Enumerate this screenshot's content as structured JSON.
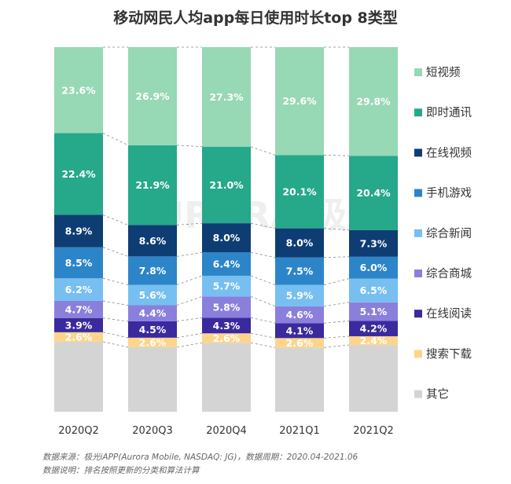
{
  "chart_data": {
    "type": "bar",
    "stacked": true,
    "normalized": true,
    "title": "移动网民人均app每日使用时长top 8类型",
    "categories": [
      "2020Q2",
      "2020Q3",
      "2020Q4",
      "2021Q1",
      "2021Q2"
    ],
    "value_format": "percent",
    "series": [
      {
        "name": "其它",
        "color": "#d4d4d4",
        "values": [
          null,
          null,
          null,
          null,
          null
        ]
      },
      {
        "name": "搜索下载",
        "color": "#fdd58a",
        "values": [
          2.6,
          2.6,
          2.6,
          2.6,
          2.4
        ]
      },
      {
        "name": "在线阅读",
        "color": "#3a2a9e",
        "values": [
          3.9,
          4.5,
          4.3,
          4.1,
          4.2
        ]
      },
      {
        "name": "综合商城",
        "color": "#8b7fdc",
        "values": [
          4.7,
          4.4,
          5.8,
          4.6,
          5.1
        ]
      },
      {
        "name": "综合新闻",
        "color": "#76bff0",
        "values": [
          6.2,
          5.6,
          5.7,
          5.9,
          6.5
        ]
      },
      {
        "name": "手机游戏",
        "color": "#2c85c8",
        "values": [
          8.5,
          7.8,
          6.4,
          7.5,
          6.0
        ]
      },
      {
        "name": "在线视频",
        "color": "#0e3d73",
        "values": [
          8.9,
          8.6,
          8.0,
          8.0,
          7.3
        ]
      },
      {
        "name": "即时通讯",
        "color": "#26a88a",
        "values": [
          22.4,
          21.9,
          21.0,
          20.1,
          20.4
        ]
      },
      {
        "name": "短视频",
        "color": "#97d8b5",
        "values": [
          23.6,
          26.9,
          27.3,
          29.6,
          29.8
        ]
      }
    ],
    "legend_position": "right",
    "legend_order": [
      "短视频",
      "即时通讯",
      "在线视频",
      "手机游戏",
      "综合新闻",
      "综合商城",
      "在线阅读",
      "搜索下载",
      "其它"
    ],
    "watermark": "AURORA 极光"
  },
  "footnote": {
    "line1": "数据来源：极光iAPP(Aurora Mobile, NASDAQ: JG)，数据周期：2020.04-2021.06",
    "line2": "数据说明：排名按照更新的分类和算法计算"
  },
  "colors": {
    "title": "#333333",
    "label_light": "#ffffff",
    "axis_label": "#333333",
    "connector": "#888888"
  }
}
